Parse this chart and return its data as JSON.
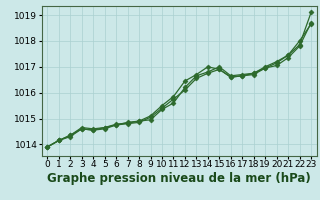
{
  "title": "Graphe pression niveau de la mer (hPa)",
  "xlabel_hours": [
    0,
    1,
    2,
    3,
    4,
    5,
    6,
    7,
    8,
    9,
    10,
    11,
    12,
    13,
    14,
    15,
    16,
    17,
    18,
    19,
    20,
    21,
    22,
    23
  ],
  "series": [
    [
      1013.9,
      1014.15,
      1014.3,
      1014.6,
      1014.55,
      1014.6,
      1014.75,
      1014.8,
      1014.85,
      1015.05,
      1015.4,
      1015.75,
      1016.1,
      1016.55,
      1016.75,
      1016.9,
      1016.6,
      1016.65,
      1016.75,
      1016.95,
      1017.15,
      1017.45,
      1017.85,
      1019.1
    ],
    [
      1013.9,
      1014.15,
      1014.35,
      1014.65,
      1014.6,
      1014.65,
      1014.78,
      1014.82,
      1014.9,
      1014.95,
      1015.35,
      1015.6,
      1016.2,
      1016.65,
      1016.8,
      1017.0,
      1016.65,
      1016.7,
      1016.75,
      1017.0,
      1017.2,
      1017.45,
      1018.0,
      1018.65
    ],
    [
      1013.9,
      1014.15,
      1014.35,
      1014.6,
      1014.55,
      1014.65,
      1014.75,
      1014.85,
      1014.9,
      1015.1,
      1015.5,
      1015.85,
      1016.45,
      1016.7,
      1017.0,
      1016.9,
      1016.6,
      1016.65,
      1016.7,
      1016.95,
      1017.05,
      1017.35,
      1017.8,
      1018.7
    ]
  ],
  "line_color": "#2d6a2d",
  "marker": "D",
  "marker_size": 2.5,
  "bg_color": "#cce8e8",
  "grid_color": "#aad0d0",
  "ylim": [
    1013.55,
    1019.35
  ],
  "yticks": [
    1014,
    1015,
    1016,
    1017,
    1018,
    1019
  ],
  "title_fontsize": 8.5,
  "tick_fontsize": 6.5,
  "linewidth": 0.9
}
